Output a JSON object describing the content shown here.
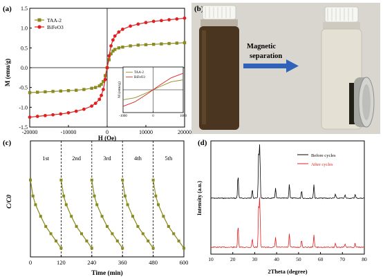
{
  "panels": {
    "a": {
      "label": "(a)"
    },
    "b": {
      "label": "(b)",
      "arrow_text_1": "Magnetic",
      "arrow_text_2": "separation"
    },
    "c": {
      "label": "(c)"
    },
    "d": {
      "label": "(d)"
    }
  },
  "chart_data": [
    {
      "panel": "a",
      "type": "line",
      "xlabel": "H (Oe)",
      "ylabel": "M (emu/g)",
      "xlim": [
        -20000,
        20000
      ],
      "ylim": [
        -1.5,
        1.5
      ],
      "xticks": [
        "-20000",
        "-10000",
        "0",
        "10000",
        "20000"
      ],
      "yticks": [
        "-1.5",
        "-1.0",
        "-0.5",
        "0.0",
        "0.5",
        "1.0",
        "1.5"
      ],
      "legend_position": "top-left",
      "series": [
        {
          "name": "TAA-2",
          "color": "#8a8a1f",
          "x": [
            -20000,
            -18000,
            -16000,
            -14000,
            -12000,
            -10000,
            -8000,
            -6000,
            -4000,
            -3000,
            -2000,
            -1500,
            -1000,
            -500,
            0,
            500,
            1000,
            1500,
            2000,
            3000,
            4000,
            6000,
            8000,
            10000,
            12000,
            14000,
            16000,
            18000,
            20000
          ],
          "values": [
            -0.63,
            -0.62,
            -0.61,
            -0.6,
            -0.59,
            -0.58,
            -0.57,
            -0.55,
            -0.52,
            -0.5,
            -0.46,
            -0.42,
            -0.35,
            -0.2,
            0.0,
            0.2,
            0.35,
            0.42,
            0.46,
            0.5,
            0.52,
            0.55,
            0.57,
            0.58,
            0.59,
            0.6,
            0.61,
            0.62,
            0.63
          ]
        },
        {
          "name": "BiFeO3",
          "color": "#e02020",
          "x": [
            -20000,
            -18000,
            -16000,
            -14000,
            -12000,
            -10000,
            -8000,
            -6000,
            -4000,
            -3000,
            -2000,
            -1500,
            -1000,
            -500,
            0,
            500,
            1000,
            1500,
            2000,
            3000,
            4000,
            6000,
            8000,
            10000,
            12000,
            14000,
            16000,
            18000,
            20000
          ],
          "values": [
            -1.25,
            -1.23,
            -1.21,
            -1.19,
            -1.17,
            -1.14,
            -1.1,
            -1.05,
            -0.97,
            -0.9,
            -0.8,
            -0.7,
            -0.55,
            -0.3,
            0.0,
            0.3,
            0.55,
            0.7,
            0.8,
            0.9,
            0.97,
            1.05,
            1.1,
            1.14,
            1.17,
            1.19,
            1.21,
            1.23,
            1.25
          ]
        }
      ],
      "inset": {
        "xlim": [
          -1000,
          1000
        ],
        "xticks": [
          "-1000",
          "0",
          "1000"
        ],
        "ylabel": "M (emu/g)",
        "series": [
          {
            "name": "TAA-2",
            "color": "#8a8a1f",
            "x": [
              -1000,
              -600,
              -200,
              200,
              600,
              1000
            ],
            "values": [
              -0.35,
              -0.28,
              -0.1,
              0.1,
              0.28,
              0.35
            ]
          },
          {
            "name": "BiFeO3",
            "color": "#e02020",
            "x": [
              -1000,
              -600,
              -200,
              200,
              600,
              1000
            ],
            "values": [
              -0.58,
              -0.42,
              -0.15,
              0.15,
              0.42,
              0.58
            ]
          }
        ]
      }
    },
    {
      "panel": "c",
      "type": "line",
      "xlabel": "Time (min)",
      "ylabel": "C/C0",
      "xlim": [
        0,
        600
      ],
      "ylim": [
        0.2,
        1.0
      ],
      "xticks": [
        "0",
        "120",
        "240",
        "360",
        "480",
        "600"
      ],
      "cycle_labels": [
        "1st",
        "2nd",
        "3rd",
        "4th",
        "5th"
      ],
      "color": "#8a8a1f",
      "cycle_relative_time": [
        0,
        10,
        20,
        40,
        60,
        80,
        100,
        120
      ],
      "cycle_values": [
        0.73,
        0.62,
        0.56,
        0.48,
        0.41,
        0.36,
        0.31,
        0.26
      ]
    },
    {
      "panel": "d",
      "type": "line",
      "xlabel": "2Theta (degree)",
      "ylabel": "Intensity (a.u.)",
      "xlim": [
        10,
        80
      ],
      "xticks": [
        "10",
        "20",
        "30",
        "40",
        "50",
        "60",
        "70",
        "80"
      ],
      "legend_position": "top-right",
      "series": [
        {
          "name": "Before cycles",
          "color": "#000000"
        },
        {
          "name": "After cycles",
          "color": "#e02020"
        }
      ],
      "peaks": [
        {
          "x": 22.4,
          "h": 0.45
        },
        {
          "x": 28.9,
          "h": 0.18
        },
        {
          "x": 31.8,
          "h": 0.85
        },
        {
          "x": 32.3,
          "h": 1.0
        },
        {
          "x": 39.5,
          "h": 0.2
        },
        {
          "x": 45.8,
          "h": 0.28
        },
        {
          "x": 51.4,
          "h": 0.15
        },
        {
          "x": 57.0,
          "h": 0.26
        },
        {
          "x": 66.8,
          "h": 0.08
        },
        {
          "x": 71.2,
          "h": 0.06
        },
        {
          "x": 75.8,
          "h": 0.08
        }
      ]
    }
  ]
}
